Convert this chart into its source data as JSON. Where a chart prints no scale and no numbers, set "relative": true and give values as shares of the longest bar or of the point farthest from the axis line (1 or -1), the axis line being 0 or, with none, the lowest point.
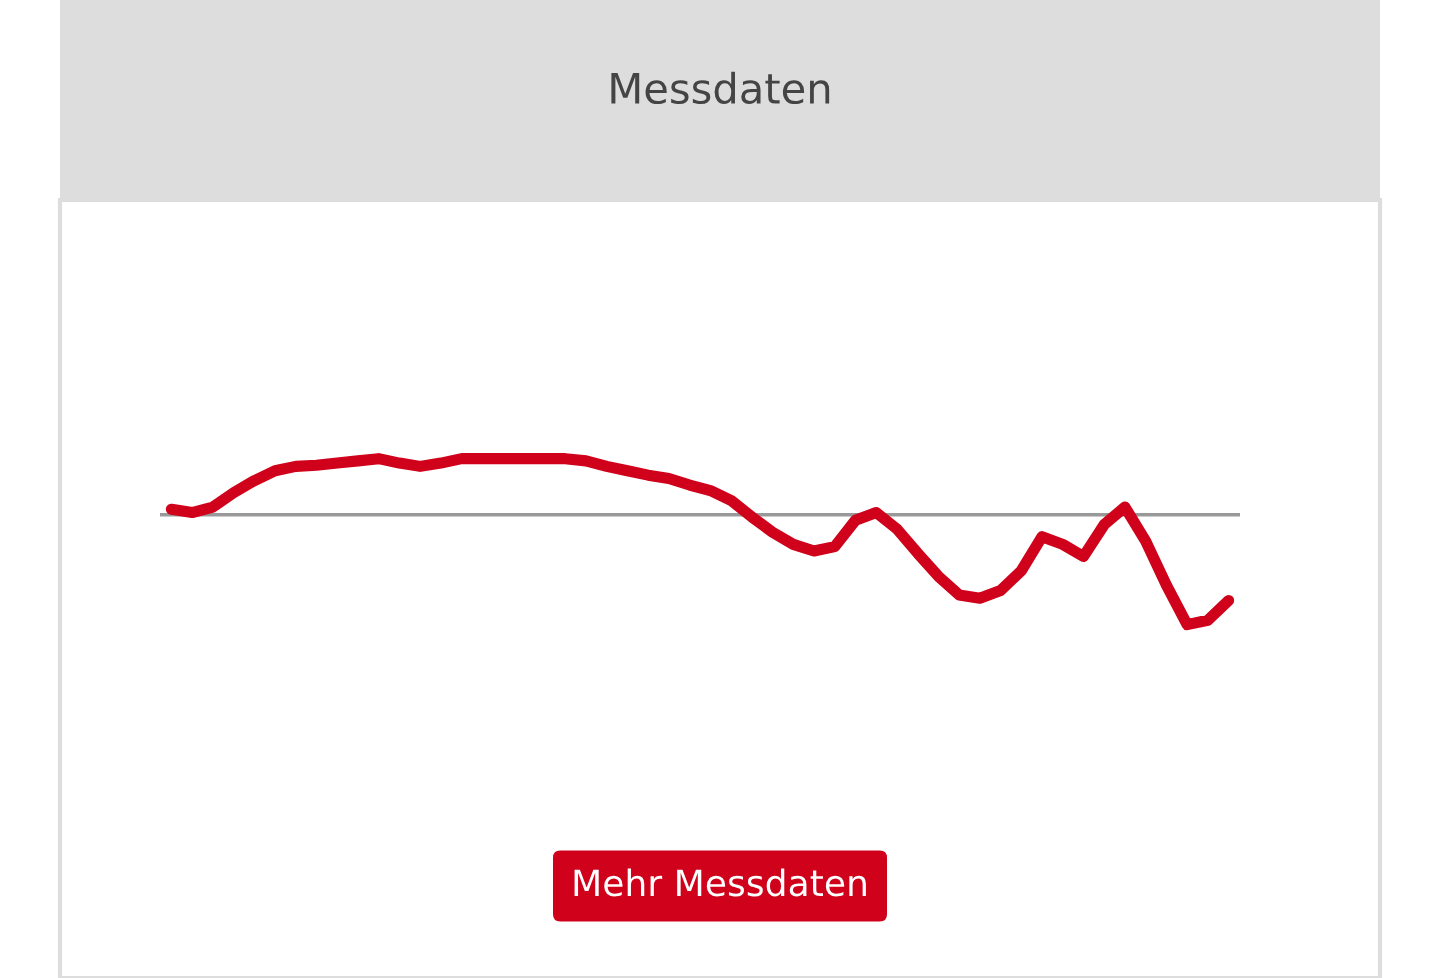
{
  "chart_data": {
    "type": "line",
    "title": "Messdaten",
    "relative": true,
    "color": "#d0021b",
    "marker": "none",
    "line_style": "solid",
    "categories": [
      null,
      null,
      null,
      null,
      null,
      null,
      null,
      null,
      null,
      null,
      null,
      null,
      null,
      null,
      null,
      null,
      null,
      null,
      null,
      null,
      null,
      null,
      null,
      null,
      null,
      null,
      null,
      null,
      null,
      null,
      null,
      null,
      null,
      null,
      null,
      null,
      null,
      null,
      null,
      null,
      null,
      null,
      null,
      null,
      null,
      null,
      null,
      null,
      null,
      null,
      null,
      null
    ],
    "values": [
      0.05,
      0.02,
      0.07,
      0.2,
      0.31,
      0.4,
      0.44,
      0.45,
      0.47,
      0.49,
      0.51,
      0.47,
      0.44,
      0.47,
      0.51,
      0.51,
      0.51,
      0.51,
      0.51,
      0.51,
      0.49,
      0.44,
      0.4,
      0.36,
      0.33,
      0.27,
      0.22,
      0.13,
      -0.02,
      -0.16,
      -0.27,
      -0.33,
      -0.29,
      -0.05,
      0.02,
      -0.13,
      -0.35,
      -0.56,
      -0.73,
      -0.76,
      -0.69,
      -0.51,
      -0.2,
      -0.27,
      -0.38,
      -0.09,
      0.07,
      -0.24,
      -0.64,
      -1,
      -0.96,
      -0.78
    ],
    "annotations": [
      "Mehr Messdaten"
    ]
  }
}
